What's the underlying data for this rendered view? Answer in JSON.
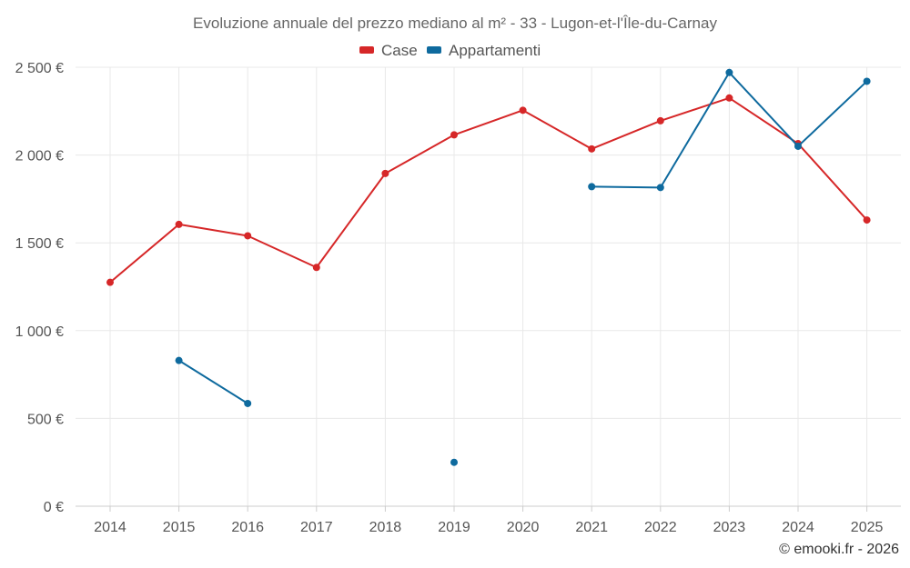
{
  "chart_data": {
    "type": "line",
    "title": "Evoluzione annuale del prezzo mediano al m² - 33 - Lugon-et-l'Île-du-Carnay",
    "categories": [
      "2014",
      "2015",
      "2016",
      "2017",
      "2018",
      "2019",
      "2020",
      "2021",
      "2022",
      "2023",
      "2024",
      "2025"
    ],
    "ylim": [
      0,
      2500
    ],
    "yticks": [
      0,
      500,
      1000,
      1500,
      2000,
      2500
    ],
    "ytick_labels": [
      "0 €",
      "500 €",
      "1 000 €",
      "1 500 €",
      "2 000 €",
      "2 500 €"
    ],
    "legend_position": "top-center",
    "grid": true,
    "series": [
      {
        "name": "Case",
        "color": "#d62728",
        "values": [
          1275,
          1605,
          1540,
          1360,
          1895,
          2115,
          2255,
          2035,
          2195,
          2325,
          2065,
          1630
        ]
      },
      {
        "name": "Appartamenti",
        "color": "#0e6a9e",
        "values": [
          null,
          830,
          585,
          null,
          null,
          250,
          null,
          1820,
          1815,
          2470,
          2050,
          2420
        ]
      }
    ]
  },
  "credit": "© emooki.fr - 2026"
}
